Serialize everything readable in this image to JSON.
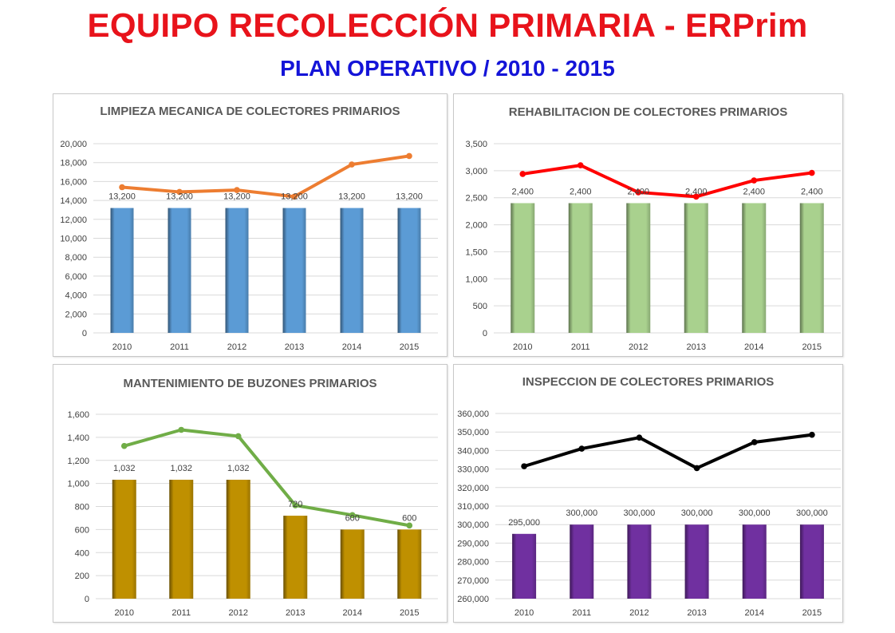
{
  "page": {
    "title": "EQUIPO RECOLECCIÓN PRIMARIA - ERPrim",
    "subtitle": "PLAN OPERATIVO / 2010 - 2015"
  },
  "chart_data": [
    {
      "type": "bar",
      "title": "LIMPIEZA MECANICA DE COLECTORES PRIMARIOS",
      "categories": [
        "2010",
        "2011",
        "2012",
        "2013",
        "2014",
        "2015"
      ],
      "ylim": [
        0,
        20000
      ],
      "yticks": [
        0,
        2000,
        4000,
        6000,
        8000,
        10000,
        12000,
        14000,
        16000,
        18000,
        20000
      ],
      "grid": true,
      "legend": "none",
      "series": [
        {
          "type": "bar",
          "values": [
            13200,
            13200,
            13200,
            13200,
            13200,
            13200
          ],
          "color": "#5b9bd5",
          "data_labels": [
            "13,200",
            "13,200",
            "13,200",
            "13,200",
            "13,200",
            "13,200"
          ]
        },
        {
          "type": "line",
          "values": [
            15400,
            14900,
            15100,
            14400,
            17800,
            18700
          ],
          "color": "#ed7d31"
        }
      ]
    },
    {
      "type": "bar",
      "title": "REHABILITACION DE COLECTORES PRIMARIOS",
      "categories": [
        "2010",
        "2011",
        "2012",
        "2013",
        "2014",
        "2015"
      ],
      "ylim": [
        0,
        3500
      ],
      "yticks": [
        0,
        500,
        1000,
        1500,
        2000,
        2500,
        3000,
        3500
      ],
      "grid": true,
      "legend": "none",
      "series": [
        {
          "type": "bar",
          "values": [
            2400,
            2400,
            2400,
            2400,
            2400,
            2400
          ],
          "color": "#a9d18e",
          "data_labels": [
            "2,400",
            "2,400",
            "2,400",
            "2,400",
            "2,400",
            "2,400"
          ]
        },
        {
          "type": "line",
          "values": [
            2940,
            3100,
            2600,
            2520,
            2820,
            2960
          ],
          "color": "#ff0000"
        }
      ]
    },
    {
      "type": "bar",
      "title": "MANTENIMIENTO DE BUZONES PRIMARIOS",
      "categories": [
        "2010",
        "2011",
        "2012",
        "2013",
        "2014",
        "2015"
      ],
      "ylim": [
        0,
        1600
      ],
      "yticks": [
        0,
        200,
        400,
        600,
        800,
        1000,
        1200,
        1400,
        1600
      ],
      "grid": true,
      "legend": "none",
      "series": [
        {
          "type": "bar",
          "values": [
            1032,
            1032,
            1032,
            720,
            600,
            600
          ],
          "color": "#bf9000",
          "data_labels": [
            "1,032",
            "1,032",
            "1,032",
            "720",
            "600",
            "600"
          ]
        },
        {
          "type": "line",
          "values": [
            1325,
            1465,
            1410,
            810,
            725,
            635
          ],
          "color": "#70ad47"
        }
      ]
    },
    {
      "type": "bar",
      "title": "INSPECCION DE COLECTORES PRIMARIOS",
      "categories": [
        "2010",
        "2011",
        "2012",
        "2013",
        "2014",
        "2015"
      ],
      "ylim": [
        260000,
        360000
      ],
      "yticks": [
        260000,
        270000,
        280000,
        290000,
        300000,
        310000,
        320000,
        330000,
        340000,
        350000,
        360000
      ],
      "grid": true,
      "legend": "none",
      "series": [
        {
          "type": "bar",
          "values": [
            295000,
            300000,
            300000,
            300000,
            300000,
            300000
          ],
          "color": "#7030a0",
          "data_labels": [
            "295,000",
            "300,000",
            "300,000",
            "300,000",
            "300,000",
            "300,000"
          ]
        },
        {
          "type": "line",
          "values": [
            331500,
            341000,
            347000,
            330500,
            344500,
            348500
          ],
          "color": "#000000"
        }
      ]
    }
  ]
}
